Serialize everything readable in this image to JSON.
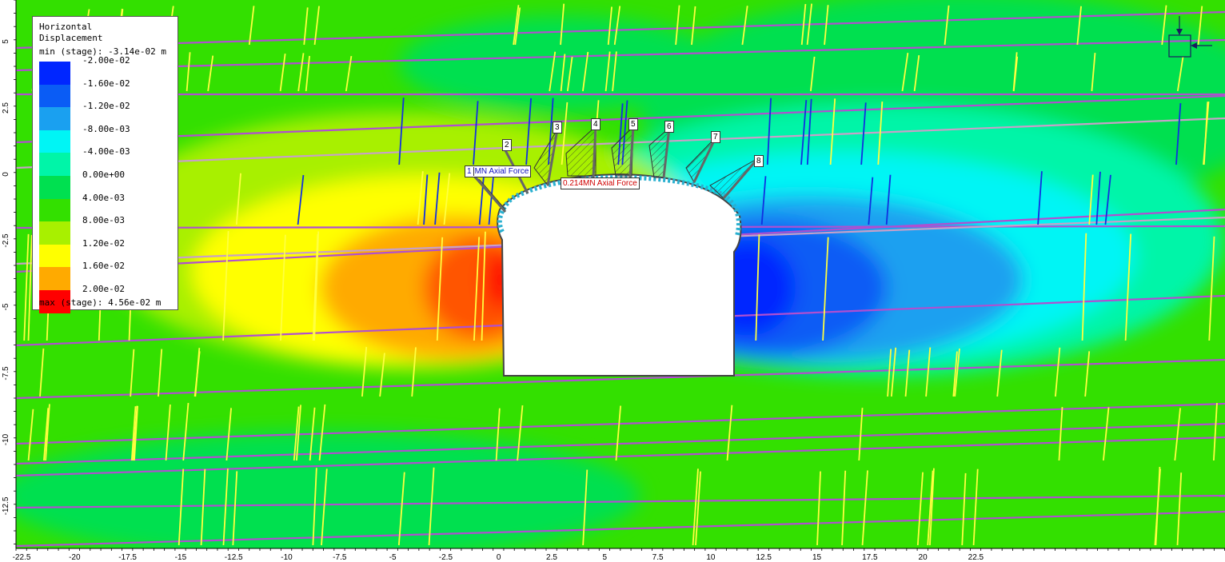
{
  "legend": {
    "title_line1": "Horizontal",
    "title_line2": "Displacement",
    "min_text": "min (stage): -3.14e-02 m",
    "max_text": "max (stage): 4.56e-02 m",
    "entries": [
      {
        "label": "-2.00e-02",
        "color": "#0026ff"
      },
      {
        "label": "-1.60e-02",
        "color": "#0a5cf5"
      },
      {
        "label": "-1.20e-02",
        "color": "#1aa0f0"
      },
      {
        "label": "-8.00e-03",
        "color": "#00f5f5"
      },
      {
        "label": "-4.00e-03",
        "color": "#00f5a8"
      },
      {
        "label": "0.00e+00",
        "color": "#00e050"
      },
      {
        "label": "4.00e-03",
        "color": "#33e000"
      },
      {
        "label": "8.00e-03",
        "color": "#a8f000"
      },
      {
        "label": "1.20e-02",
        "color": "#ffff00"
      },
      {
        "label": "1.60e-02",
        "color": "#ffaa00"
      },
      {
        "label": "2.00e-02",
        "color": "#ff0000"
      }
    ]
  },
  "x_ticks": [
    "-22.5",
    "-20",
    "-17.5",
    "-15",
    "-12.5",
    "-10",
    "-7.5",
    "-5",
    "-2.5",
    "0",
    "2.5",
    "5",
    "7.5",
    "10",
    "12.5",
    "15",
    "17.5",
    "20",
    "22.5"
  ],
  "y_ticks": [
    "5",
    "2.5",
    "0",
    "-2.5",
    "-5",
    "-7.5",
    "-10",
    "-12.5"
  ],
  "bolts": [
    "1",
    "2",
    "3",
    "4",
    "5",
    "6",
    "7",
    "8"
  ],
  "force_labels": {
    "blue": "MN Axial Force",
    "red": "0.214MN Axial Force"
  },
  "colors": {
    "joint_magenta": "#b04fd0",
    "tick_yellow": "#ffff40",
    "tick_blue": "#1030e0",
    "background_green": "#33e000"
  }
}
